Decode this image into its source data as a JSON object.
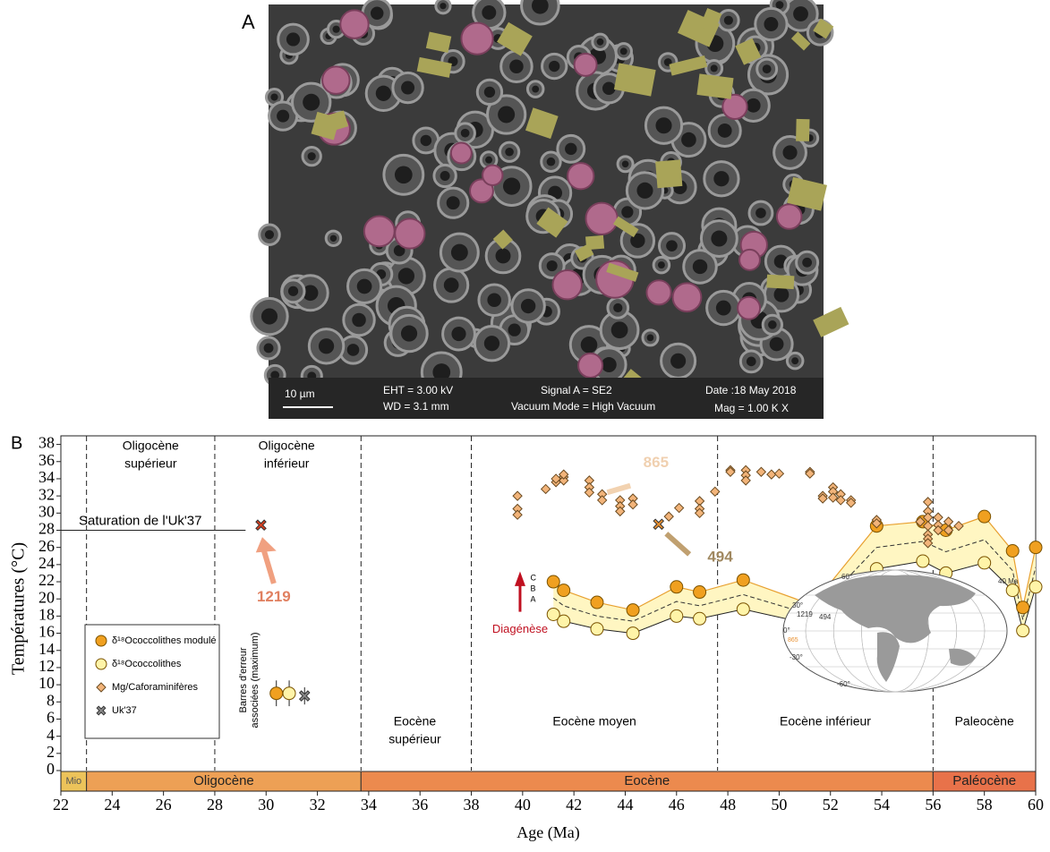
{
  "panel_labels": [
    "A",
    "B"
  ],
  "sem": {
    "scale": "10 µm",
    "eht": "EHT =  3.00 kV",
    "wd": "WD =  3.1 mm",
    "signal": "Signal A = SE2",
    "vacuum": "Vacuum Mode = High Vacuum",
    "date": "Date :18 May 2018",
    "mag": "Mag =     1.00 K X"
  },
  "chart_data": {
    "type": "scatter",
    "x_label": "Age (Ma)",
    "y_label": "Températures (°C)",
    "xlim": [
      22,
      60
    ],
    "ylim": [
      0,
      39
    ],
    "xticks": [
      22,
      24,
      26,
      28,
      30,
      32,
      34,
      36,
      38,
      40,
      42,
      44,
      46,
      48,
      50,
      52,
      54,
      56,
      58,
      60
    ],
    "yticks": [
      0,
      2,
      4,
      6,
      8,
      10,
      12,
      14,
      16,
      18,
      20,
      22,
      24,
      26,
      28,
      30,
      32,
      34,
      36,
      38
    ],
    "series": [
      {
        "name": "δ¹⁸Ococcolithes modulé",
        "marker": "circle",
        "color": "#f0a020",
        "x": [
          41.2,
          41.6,
          42.9,
          44.3,
          46,
          46.9,
          48.6,
          51.3,
          53.8,
          55.6,
          56.5,
          58,
          59.1,
          59.5,
          60
        ],
        "values": [
          22,
          21,
          19.6,
          18.7,
          21.4,
          20.8,
          22.2,
          19.3,
          28.5,
          29,
          28,
          29.6,
          25.6,
          19,
          26
        ]
      },
      {
        "name": "δ¹⁸Ococcolithes",
        "marker": "circle",
        "color": "#fff4a8",
        "x": [
          41.2,
          41.6,
          42.9,
          44.3,
          46,
          46.9,
          48.6,
          51.3,
          53.8,
          55.6,
          56.5,
          58,
          59.1,
          59.5,
          60
        ],
        "values": [
          18.2,
          17.4,
          16.5,
          16,
          18,
          17.7,
          18.8,
          17,
          23.5,
          24.4,
          23,
          24.2,
          21,
          16.3,
          21.4
        ]
      },
      {
        "name": "Mg/Caforaminifères",
        "marker": "diamond",
        "color": "#f2b47a",
        "x": [
          39.8,
          39.8,
          39.8,
          40.9,
          41.3,
          41.3,
          41.6,
          41.6,
          41.6,
          42.6,
          42.6,
          42.6,
          43.1,
          43.1,
          43.8,
          43.8,
          43.8,
          44.3,
          44.3,
          45.7,
          46.1,
          46.9,
          46.9,
          46.9,
          47.5,
          48.1,
          48.1,
          48.7,
          48.7,
          48.7,
          49.3,
          49.7,
          50,
          51.2,
          51.2,
          51.7,
          51.7,
          52.1,
          52.1,
          52.1,
          52.4,
          52.4,
          52.8,
          52.8,
          53.8,
          53.8,
          55.5,
          55.8,
          55.8,
          55.8,
          55.8,
          55.8,
          55.8,
          55.8,
          56.2,
          56.2,
          56.2,
          56.6,
          56.6,
          57
        ],
        "values": [
          32,
          30.5,
          29.8,
          32.8,
          33.6,
          34,
          34.2,
          33.8,
          34.5,
          33.8,
          33,
          32.4,
          32.2,
          31.5,
          31.5,
          30.8,
          30.2,
          31.7,
          31,
          29.6,
          30.6,
          31.4,
          30.5,
          30,
          32.5,
          35,
          34.8,
          35,
          34.4,
          33.8,
          34.8,
          34.5,
          34.6,
          34.8,
          34.6,
          32,
          31.7,
          33,
          32.5,
          31.8,
          32.2,
          31.5,
          31.5,
          31.2,
          29.2,
          28.8,
          29,
          31.3,
          30.2,
          29.5,
          28.5,
          27.5,
          27,
          26.5,
          29.5,
          28.6,
          28,
          29,
          28,
          28.5
        ]
      },
      {
        "name": "Uk'37",
        "marker": "x",
        "color": "#8a8a8a",
        "x": [
          29.8,
          45.3
        ],
        "values": [
          28.6,
          28.7
        ],
        "point_colors": [
          "#d84020",
          "#e89030"
        ]
      }
    ],
    "band_lines": {
      "labels": [
        "C",
        "B",
        "A"
      ],
      "B": {
        "x": [
          41.2,
          41.6,
          42.9,
          44.3,
          46,
          46.9,
          48.6,
          51.3,
          53.8,
          55.6,
          56.5,
          58,
          59.1,
          59.5,
          60
        ],
        "values": [
          20.1,
          19.2,
          18,
          17.4,
          19.7,
          19.2,
          20.5,
          18.1,
          26,
          26.7,
          25.5,
          26.9,
          23.3,
          17.6,
          23.7
        ]
      }
    },
    "error_bars": {
      "x": [
        30.4,
        30.9,
        31.5
      ],
      "values": [
        9,
        9,
        8.7
      ],
      "errors": [
        1.5,
        1.5,
        1
      ],
      "colors": [
        "#f0a020",
        "#fff4a8",
        "#8a8a8a"
      ],
      "markers": [
        "circle",
        "circle",
        "x"
      ],
      "label": [
        "Barres d'erreur",
        "associées (maximum)"
      ]
    },
    "boundaries": [
      23,
      28,
      33.7,
      38,
      47.6,
      56
    ],
    "periods": [
      {
        "label": [
          "Oligocène",
          "supérieur"
        ],
        "x": 25.5,
        "position": "top"
      },
      {
        "label": [
          "Oligocène",
          "inférieur"
        ],
        "x": 30.8,
        "position": "top"
      },
      {
        "label": [
          "Eocène",
          "supérieur"
        ],
        "x": 35.8,
        "position": "bottom"
      },
      {
        "label": [
          "Eocène moyen"
        ],
        "x": 42.8,
        "position": "bottom"
      },
      {
        "label": [
          "Eocène inférieur"
        ],
        "x": 51.8,
        "position": "bottom"
      },
      {
        "label": [
          "Paleocène"
        ],
        "x": 58,
        "position": "bottom"
      }
    ],
    "epochs": [
      {
        "label": "Mio",
        "start": 22,
        "end": 23,
        "color": "#ecc35a"
      },
      {
        "label": "Oligocène",
        "start": 23,
        "end": 33.7,
        "color": "#eda055"
      },
      {
        "label": "Eocène",
        "start": 33.7,
        "end": 56,
        "color": "#ec8a4e"
      },
      {
        "label": "Paléocène",
        "start": 56,
        "end": 60,
        "color": "#e8724a"
      }
    ],
    "saturation": {
      "label": "Saturation de l'Uk'37",
      "value": 28,
      "end": 29.2
    },
    "annotations": {
      "site1219": "1219",
      "site865": "865",
      "site494": "494",
      "diagenese": "Diagénèse"
    },
    "map_labels": [
      "40 Ma",
      "60°",
      "30°",
      "0°",
      "-30°",
      "-60°",
      "1219",
      "494",
      "865"
    ]
  }
}
